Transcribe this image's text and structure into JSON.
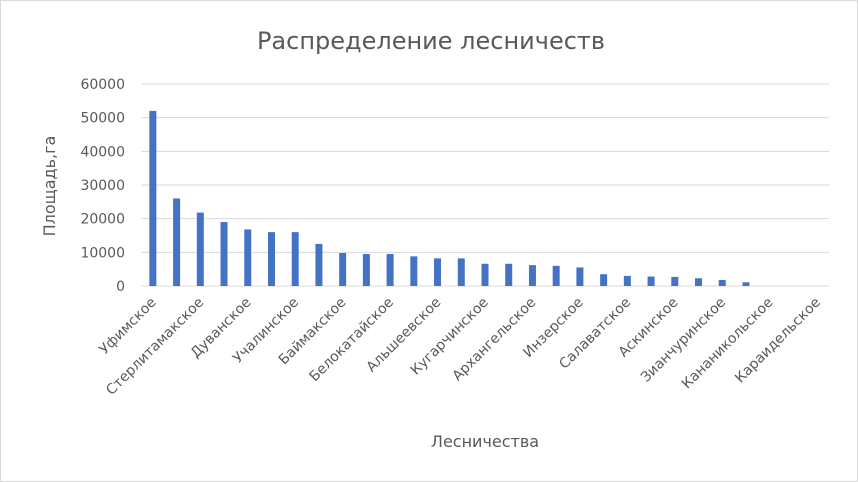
{
  "chart_data": {
    "type": "bar",
    "title": "Распределение лесничеств",
    "xlabel": "Лесничества",
    "ylabel": "Площадь,га",
    "ylim": [
      0,
      60000
    ],
    "yticks": [
      "0",
      "10000",
      "20000",
      "30000",
      "40000",
      "50000",
      "60000"
    ],
    "grid": true,
    "legend": "none",
    "bar_color": "#4472c4",
    "categories": [
      "Уфимское",
      "",
      "Стерлитамакское",
      "",
      "Дуванское",
      "",
      "Учалинское",
      "",
      "Баймакское",
      "",
      "Белокатайское",
      "",
      "Альшеевское",
      "",
      "Кугарчинское",
      "",
      "Архангельское",
      "",
      "Инзерское",
      "",
      "Салаватское",
      "",
      "Аскинское",
      "",
      "Зианчуринское",
      "",
      "Кананикольское",
      "",
      "Караидельское"
    ],
    "values": [
      52000,
      26000,
      21800,
      19000,
      16800,
      16000,
      16000,
      12500,
      9800,
      9500,
      9500,
      8800,
      8200,
      8200,
      6600,
      6600,
      6200,
      6000,
      5500,
      3500,
      3000,
      2800,
      2700,
      2300,
      1800,
      1100,
      0,
      0,
      0
    ]
  }
}
